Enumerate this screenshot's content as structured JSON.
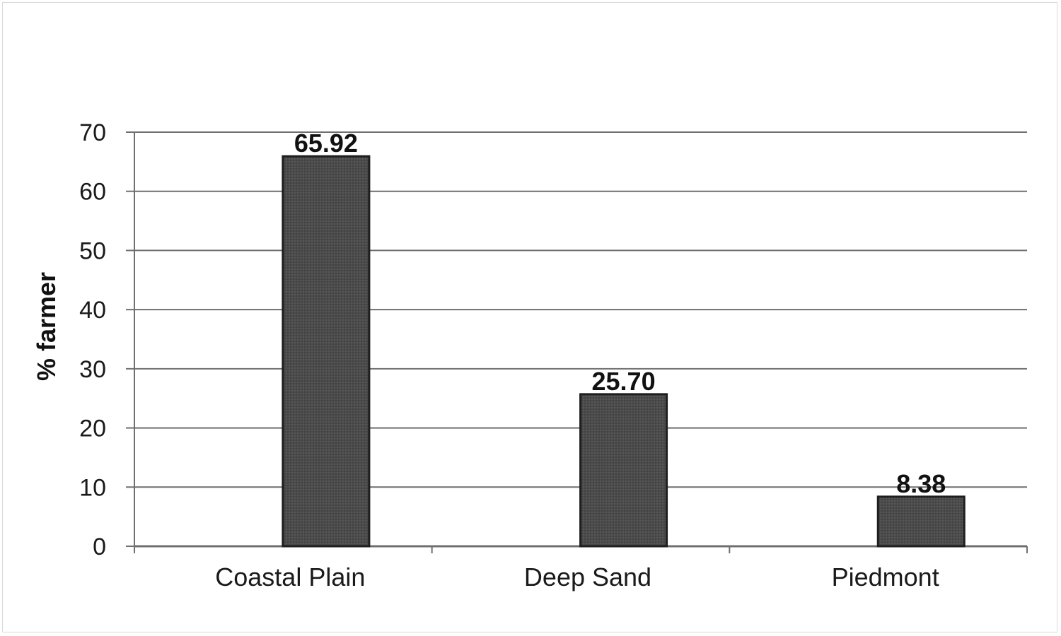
{
  "chart_data": {
    "type": "bar",
    "categories": [
      "Coastal Plain",
      "Deep Sand",
      "Piedmont"
    ],
    "values": [
      65.92,
      25.7,
      8.38
    ],
    "data_labels": [
      "65.92",
      "25.70",
      "8.38"
    ],
    "title": "",
    "xlabel": "",
    "ylabel": "% farmer",
    "ylim": [
      0,
      70
    ],
    "yticks": [
      0,
      10,
      20,
      30,
      40,
      50,
      60,
      70
    ],
    "grid": true,
    "legend": "none",
    "bar_color": "#4a4a4a"
  }
}
